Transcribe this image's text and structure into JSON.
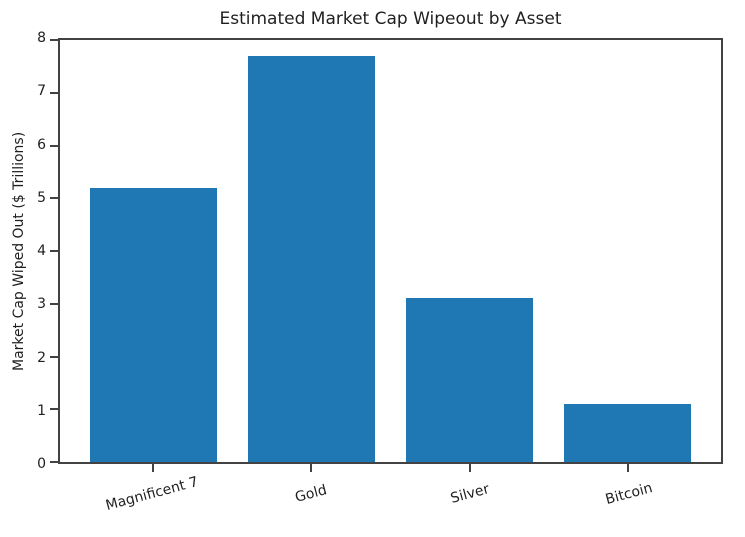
{
  "chart_data": {
    "type": "bar",
    "title": "Estimated Market Cap Wipeout by Asset",
    "categories": [
      "Magnificent 7",
      "Gold",
      "Silver",
      "Bitcoin"
    ],
    "values": [
      5.2,
      7.7,
      3.1,
      1.1
    ],
    "xlabel": "",
    "ylabel": "Market Cap Wiped Out ($ Trillions)",
    "ylim": [
      0,
      8
    ],
    "yticks": [
      0,
      1,
      2,
      3,
      4,
      5,
      6,
      7,
      8
    ],
    "bar_color": "#1f77b4",
    "axis_color": "#424242",
    "background_color": "#ffffff",
    "grid": false,
    "legend": "none",
    "bar_width_fraction": 0.8,
    "x_tick_label_rotation_deg": 15
  }
}
